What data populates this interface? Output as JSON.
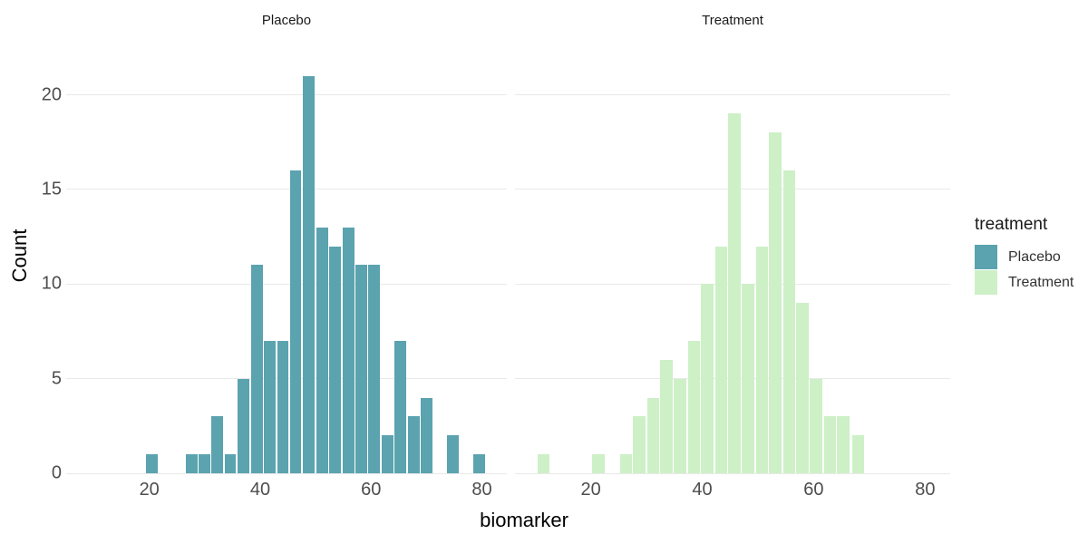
{
  "chart_data": {
    "type": "bar",
    "subtype": "faceted-histogram",
    "xlabel": "biomarker",
    "ylabel": "Count",
    "x_ticks": [
      20,
      40,
      60,
      80
    ],
    "y_ticks": [
      0,
      5,
      10,
      15,
      20
    ],
    "y_domain": [
      0,
      23
    ],
    "grid": "horizontal-major-only",
    "legend_position": "right",
    "facets": [
      {
        "label": "Placebo",
        "color": "#5ba3af",
        "binwidth": 2.36,
        "x_domain": [
          5.0,
          84.5
        ],
        "bars": [
          [
            20.5,
            1
          ],
          [
            27.6,
            1
          ],
          [
            29.9,
            1
          ],
          [
            32.3,
            3
          ],
          [
            34.6,
            1
          ],
          [
            37.0,
            5
          ],
          [
            39.4,
            11
          ],
          [
            41.7,
            7
          ],
          [
            44.1,
            7
          ],
          [
            46.4,
            16
          ],
          [
            48.8,
            21
          ],
          [
            51.2,
            13
          ],
          [
            53.5,
            12
          ],
          [
            55.9,
            13
          ],
          [
            58.2,
            11
          ],
          [
            60.6,
            11
          ],
          [
            63.0,
            2
          ],
          [
            65.3,
            7
          ],
          [
            67.7,
            3
          ],
          [
            70.0,
            4
          ],
          [
            74.8,
            2
          ],
          [
            79.5,
            1
          ]
        ]
      },
      {
        "label": "Treatment",
        "color": "#cdf0c7",
        "binwidth": 2.44,
        "x_domain": [
          6.4,
          84.5
        ],
        "bars": [
          [
            11.5,
            1
          ],
          [
            21.4,
            1
          ],
          [
            26.3,
            1
          ],
          [
            28.7,
            3
          ],
          [
            31.2,
            4
          ],
          [
            33.6,
            6
          ],
          [
            36.0,
            5
          ],
          [
            38.5,
            7
          ],
          [
            40.9,
            10
          ],
          [
            43.4,
            12
          ],
          [
            45.8,
            19
          ],
          [
            48.2,
            10
          ],
          [
            50.7,
            12
          ],
          [
            53.1,
            18
          ],
          [
            55.6,
            16
          ],
          [
            58.0,
            9
          ],
          [
            60.4,
            5
          ],
          [
            62.9,
            3
          ],
          [
            65.3,
            3
          ],
          [
            68.0,
            2
          ]
        ]
      }
    ]
  },
  "legend": {
    "title": "treatment",
    "items": [
      {
        "label": "Placebo",
        "color": "#5ba3af"
      },
      {
        "label": "Treatment",
        "color": "#cdf0c7"
      }
    ]
  },
  "colors": {
    "bar_placebo": "#5ba3af",
    "bar_treatment": "#cdf0c7",
    "bar_separator": "#ffffff",
    "gridline": "#e9e9e9",
    "tick_label": "#4d4d4d",
    "axis_title": "#000000",
    "strip_text": "#1a1a1a",
    "background": "#ffffff"
  }
}
